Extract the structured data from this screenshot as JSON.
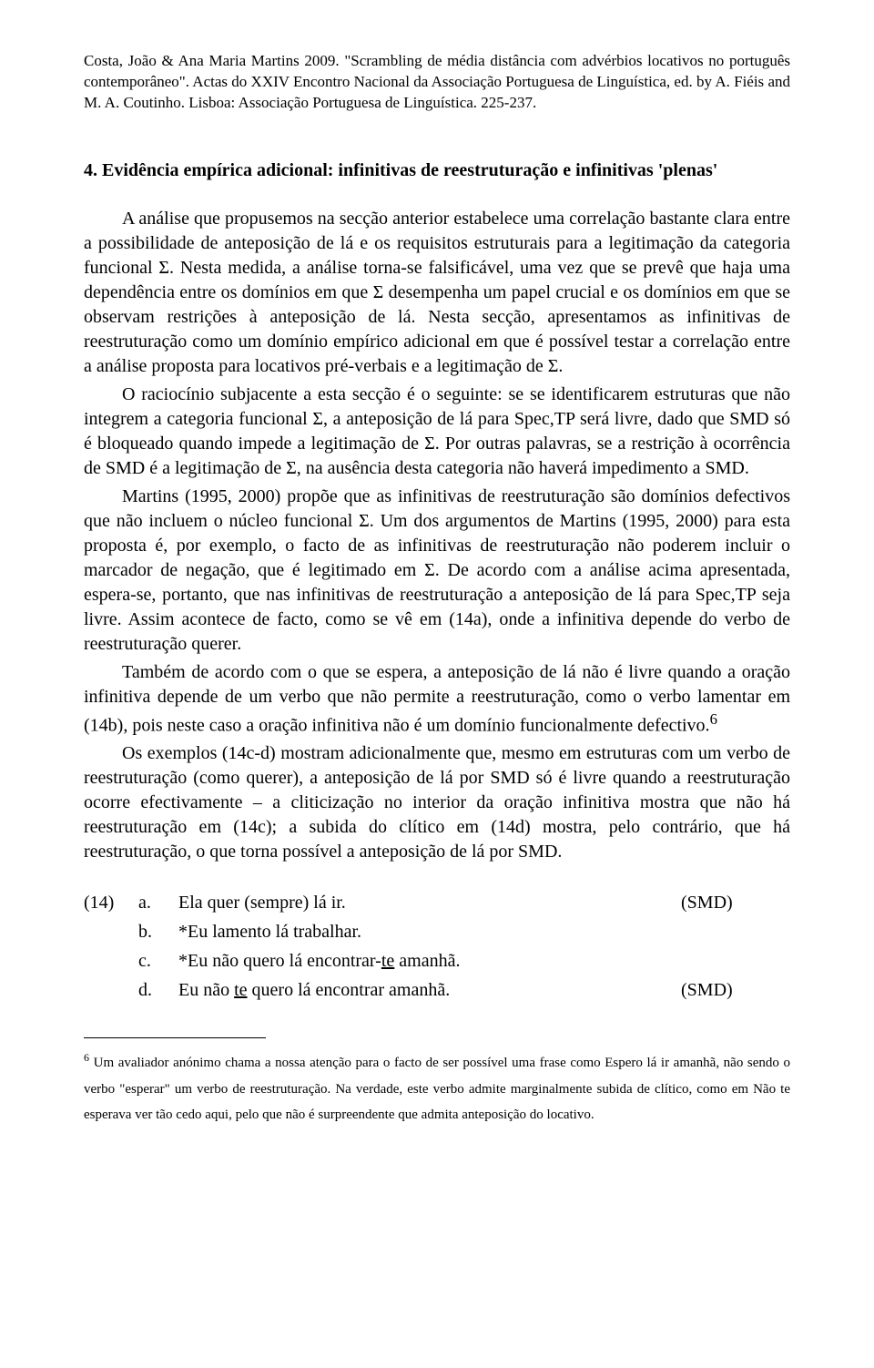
{
  "header": {
    "citation": "Costa, João & Ana Maria Martins 2009. \"Scrambling de média distância com advérbios locativos no português contemporâneo\". Actas do XXIV Encontro Nacional da Associação Portuguesa de Linguística, ed. by A. Fiéis and M. A. Coutinho. Lisboa: Associação Portuguesa de Linguística. 225-237."
  },
  "section": {
    "number": "4.",
    "title": "Evidência empírica adicional: infinitivas de reestruturação e infinitivas 'plenas'"
  },
  "paragraphs": {
    "p1": "A análise que propusemos na secção anterior estabelece uma correlação bastante clara entre a possibilidade de anteposição de lá e os requisitos estruturais para a legitimação da categoria funcional Σ. Nesta medida, a análise torna-se falsificável, uma vez que se prevê que haja uma dependência entre os domínios em que Σ desempenha um papel crucial e os domínios em que se observam restrições à anteposição de lá. Nesta secção, apresentamos as infinitivas de reestruturação como um domínio empírico adicional em que é possível testar a correlação entre a análise proposta para locativos pré-verbais e a legitimação de Σ.",
    "p2": "O raciocínio subjacente a esta secção é o seguinte: se se identificarem estruturas que não integrem a categoria funcional Σ, a anteposição de lá para Spec,TP será livre, dado que SMD só é bloqueado quando impede a legitimação de Σ. Por outras palavras, se a restrição à ocorrência de SMD é a legitimação de Σ, na ausência desta categoria não haverá impedimento a SMD.",
    "p3": "Martins (1995, 2000) propõe que as infinitivas de reestruturação são domínios defectivos que não incluem o núcleo funcional Σ. Um dos argumentos de Martins (1995, 2000) para esta proposta é, por exemplo, o facto de as infinitivas de reestruturação não poderem incluir o marcador de negação, que é legitimado em Σ. De acordo com a análise acima apresentada, espera-se, portanto, que nas infinitivas de reestruturação a anteposição de lá para Spec,TP seja livre. Assim acontece de facto, como se vê em (14a), onde a infinitiva depende do verbo de reestruturação querer.",
    "p4_pre": "Também de acordo com o que se espera, a anteposição de lá não é livre quando a oração infinitiva depende de um verbo que não permite a reestruturação, como o verbo lamentar em (14b), pois neste caso a oração infinitiva não é um domínio funcionalmente defectivo.",
    "p4_fnref": "6",
    "p5": "Os exemplos (14c-d) mostram adicionalmente que, mesmo em estruturas com um verbo de reestruturação (como querer), a anteposição de lá por SMD só é livre quando a reestruturação ocorre efectivamente – a cliticização no interior da oração infinitiva mostra que não há reestruturação em (14c); a subida do clítico em (14d) mostra, pelo contrário, que há reestruturação, o que torna possível a anteposição de lá por SMD."
  },
  "examples": {
    "number": "(14)",
    "rows": [
      {
        "letter": "a.",
        "text_pre": "Ela quer (sempre) lá ir.",
        "underline": "",
        "text_post": "",
        "tag": "(SMD)"
      },
      {
        "letter": "b.",
        "text_pre": "*Eu lamento lá trabalhar.",
        "underline": "",
        "text_post": "",
        "tag": ""
      },
      {
        "letter": "c.",
        "text_pre": "*Eu não quero lá encontrar-",
        "underline": "te",
        "text_post": " amanhã.",
        "tag": ""
      },
      {
        "letter": "d.",
        "text_pre": "Eu não ",
        "underline": "te",
        "text_post": " quero lá encontrar amanhã.",
        "tag": "(SMD)"
      }
    ]
  },
  "footnote": {
    "marker": "6",
    "text": "Um avaliador anónimo chama a nossa atenção para o facto de ser possível uma frase como Espero lá ir amanhã, não sendo o verbo \"esperar\" um verbo de reestruturação. Na verdade, este verbo admite marginalmente subida de clítico, como em Não te esperava ver tão cedo aqui, pelo que não é surpreendente que admita anteposição do locativo."
  }
}
